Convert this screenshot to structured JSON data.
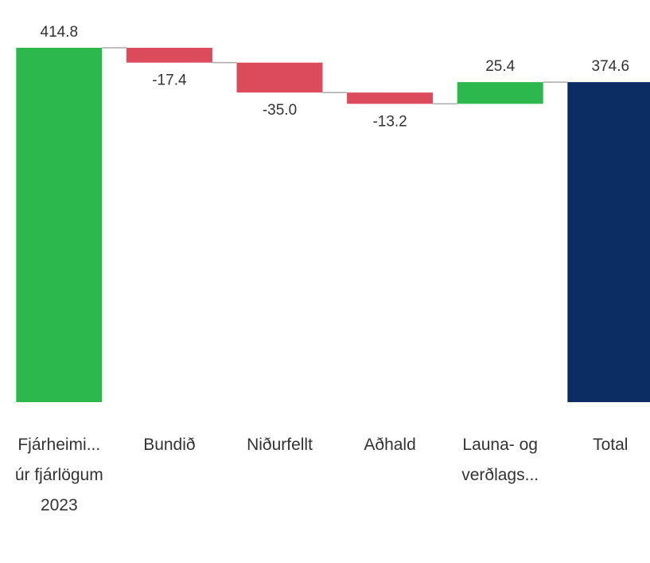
{
  "chart_data": {
    "type": "waterfall",
    "categories": [
      "Fjárheimi... úr fjárlögum 2023",
      "Bundið",
      "Niðurfellt",
      "Aðhald",
      "Launa- og verðlags...",
      "Total"
    ],
    "values": [
      414.8,
      -17.4,
      -35.0,
      -13.2,
      25.4,
      374.6
    ],
    "value_labels": [
      "414.8",
      "-17.4",
      "-35.0",
      "-13.2",
      "25.4",
      "374.6"
    ],
    "measure": [
      "absolute",
      "relative",
      "relative",
      "relative",
      "relative",
      "total"
    ],
    "increase_color": "#2db84d",
    "decrease_color": "#dc4b5b",
    "total_color": "#0b2d64",
    "connector_color": "#aaaaaa"
  }
}
